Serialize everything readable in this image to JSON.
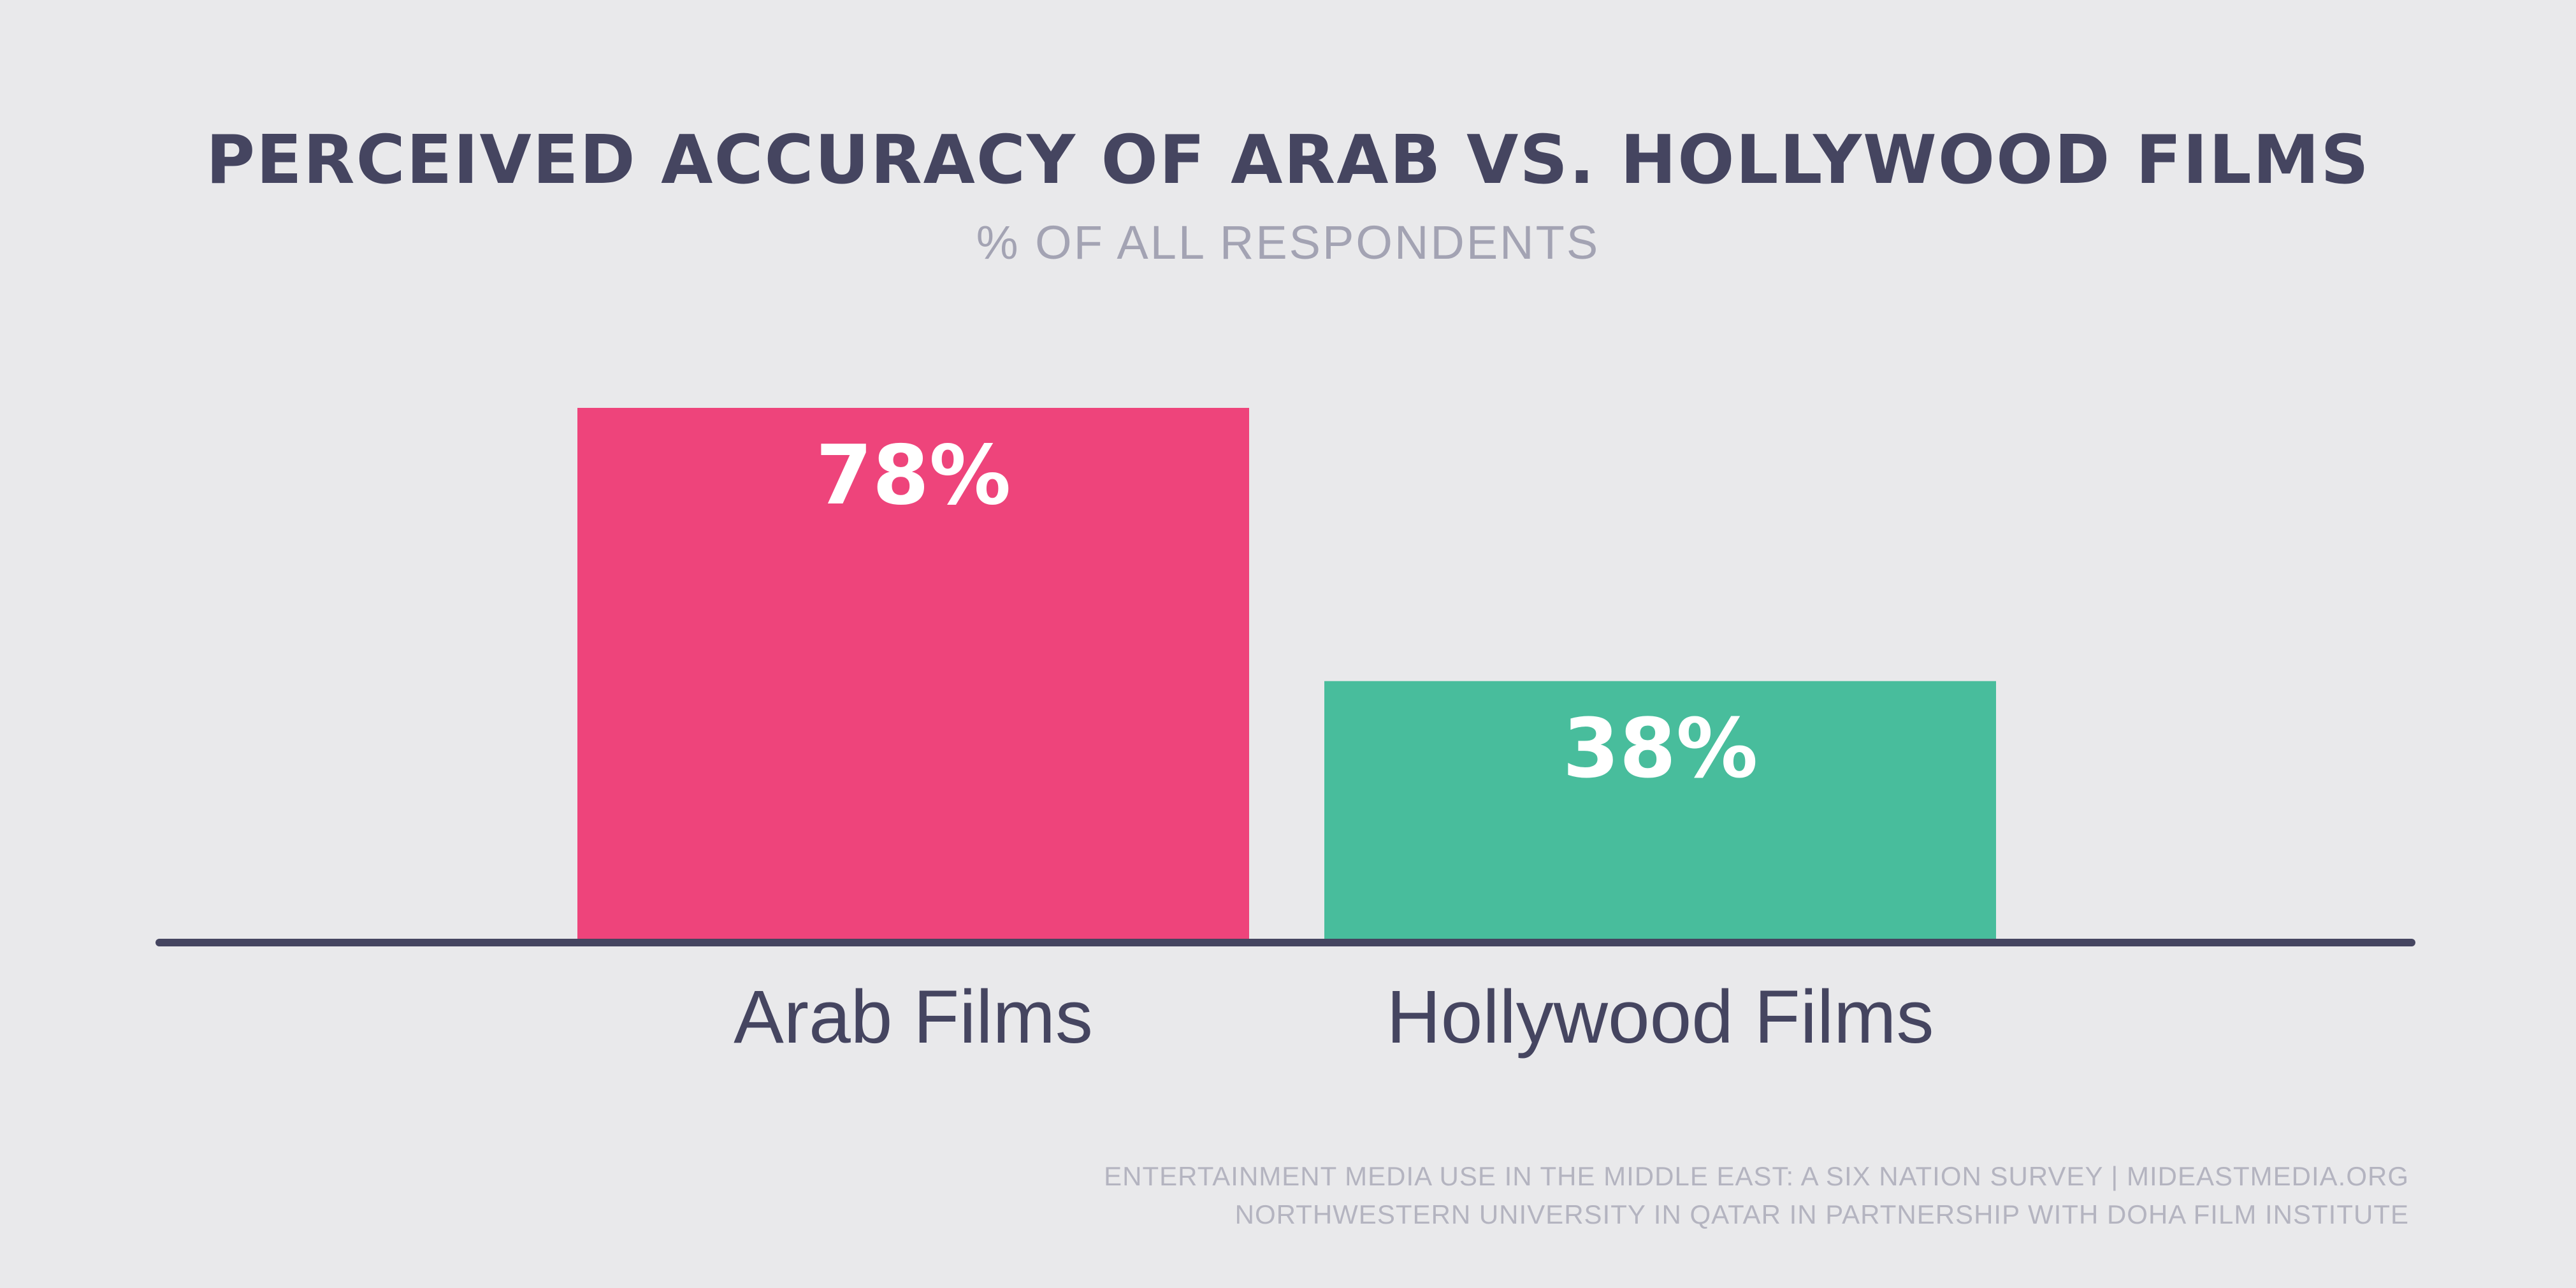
{
  "chart_data": {
    "type": "bar",
    "title": "PERCEIVED ACCURACY OF ARAB VS. HOLLYWOOD FILMS",
    "subtitle": "% OF ALL RESPONDENTS",
    "categories": [
      "Arab Films",
      "Hollywood Films"
    ],
    "values": [
      78,
      38
    ],
    "data_labels": [
      "78%",
      "38%"
    ],
    "bar_colors": [
      "#ee447b",
      "#48bd9c"
    ],
    "ylim": [
      0,
      78
    ],
    "grid": false,
    "legend": "none"
  },
  "footer": {
    "line1": "ENTERTAINMENT MEDIA USE IN THE MIDDLE EAST: A SIX NATION SURVEY | MIDEASTMEDIA.ORG",
    "line2": "NORTHWESTERN UNIVERSITY IN QATAR IN PARTNERSHIP WITH DOHA FILM INSTITUTE"
  },
  "colors": {
    "background": "#e9e9eb",
    "title": "#454560",
    "subtitle": "#a3a3b3",
    "axis": "#454560",
    "category_label": "#454560",
    "data_label": "#ffffff",
    "footer": "#b4b4c0"
  }
}
